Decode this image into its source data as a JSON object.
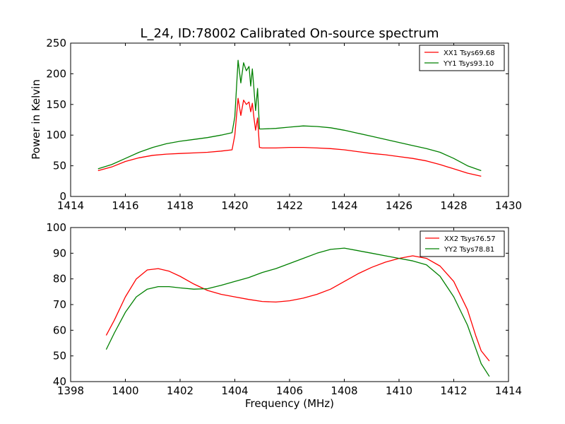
{
  "chart_data": [
    {
      "type": "line",
      "title": "L_24, ID:78002 Calibrated On-source spectrum",
      "xlabel": "",
      "ylabel": "Power in Kelvin",
      "xlim": [
        1414,
        1430
      ],
      "ylim": [
        0,
        250
      ],
      "xticks": [
        1414,
        1416,
        1418,
        1420,
        1422,
        1424,
        1426,
        1428,
        1430
      ],
      "yticks": [
        0,
        50,
        100,
        150,
        200,
        250
      ],
      "grid": false,
      "legend": "top-right",
      "series": [
        {
          "name": "XX1 Tsys69.68",
          "color": "#ff0000",
          "points": [
            [
              1415,
              42
            ],
            [
              1415.5,
              48
            ],
            [
              1416,
              57
            ],
            [
              1416.5,
              63
            ],
            [
              1417,
              67
            ],
            [
              1417.5,
              69
            ],
            [
              1418,
              70
            ],
            [
              1418.5,
              71
            ],
            [
              1419,
              72
            ],
            [
              1419.5,
              74
            ],
            [
              1419.9,
              76
            ],
            [
              1420.0,
              100
            ],
            [
              1420.12,
              160
            ],
            [
              1420.22,
              132
            ],
            [
              1420.32,
              157
            ],
            [
              1420.42,
              150
            ],
            [
              1420.52,
              154
            ],
            [
              1420.58,
              138
            ],
            [
              1420.64,
              152
            ],
            [
              1420.7,
              128
            ],
            [
              1420.76,
              108
            ],
            [
              1420.83,
              128
            ],
            [
              1420.9,
              80
            ],
            [
              1421,
              79
            ],
            [
              1421.5,
              79
            ],
            [
              1422,
              80
            ],
            [
              1422.5,
              80
            ],
            [
              1423,
              79
            ],
            [
              1423.5,
              78
            ],
            [
              1424,
              76
            ],
            [
              1424.5,
              73
            ],
            [
              1425,
              70
            ],
            [
              1425.5,
              68
            ],
            [
              1426,
              65
            ],
            [
              1426.5,
              62
            ],
            [
              1427,
              58
            ],
            [
              1427.5,
              52
            ],
            [
              1428,
              45
            ],
            [
              1428.5,
              38
            ],
            [
              1429,
              33
            ]
          ]
        },
        {
          "name": "YY1 Tsys93.10",
          "color": "#008000",
          "points": [
            [
              1415,
              45
            ],
            [
              1415.5,
              52
            ],
            [
              1416,
              62
            ],
            [
              1416.5,
              72
            ],
            [
              1417,
              80
            ],
            [
              1417.5,
              86
            ],
            [
              1418,
              90
            ],
            [
              1418.5,
              93
            ],
            [
              1419,
              96
            ],
            [
              1419.5,
              100
            ],
            [
              1419.9,
              104
            ],
            [
              1420.0,
              130
            ],
            [
              1420.12,
              222
            ],
            [
              1420.22,
              185
            ],
            [
              1420.32,
              218
            ],
            [
              1420.42,
              205
            ],
            [
              1420.52,
              212
            ],
            [
              1420.58,
              180
            ],
            [
              1420.64,
              208
            ],
            [
              1420.7,
              175
            ],
            [
              1420.76,
              140
            ],
            [
              1420.83,
              176
            ],
            [
              1420.9,
              110
            ],
            [
              1421,
              110
            ],
            [
              1421.5,
              111
            ],
            [
              1422,
              113
            ],
            [
              1422.5,
              115
            ],
            [
              1423,
              114
            ],
            [
              1423.5,
              112
            ],
            [
              1424,
              108
            ],
            [
              1424.5,
              103
            ],
            [
              1425,
              98
            ],
            [
              1425.5,
              93
            ],
            [
              1426,
              88
            ],
            [
              1426.5,
              83
            ],
            [
              1427,
              78
            ],
            [
              1427.5,
              72
            ],
            [
              1428,
              62
            ],
            [
              1428.5,
              50
            ],
            [
              1429,
              42
            ]
          ]
        }
      ]
    },
    {
      "type": "line",
      "title": "",
      "xlabel": "Frequency (MHz)",
      "ylabel": "",
      "xlim": [
        1398,
        1414
      ],
      "ylim": [
        40,
        100
      ],
      "xticks": [
        1398,
        1400,
        1402,
        1404,
        1406,
        1408,
        1410,
        1412,
        1414
      ],
      "yticks": [
        40,
        50,
        60,
        70,
        80,
        90,
        100
      ],
      "grid": false,
      "legend": "top-right",
      "series": [
        {
          "name": "XX2 Tsys76.57",
          "color": "#ff0000",
          "points": [
            [
              1399.3,
              58
            ],
            [
              1399.6,
              64
            ],
            [
              1400,
              73
            ],
            [
              1400.4,
              80
            ],
            [
              1400.8,
              83.5
            ],
            [
              1401.2,
              84
            ],
            [
              1401.6,
              83
            ],
            [
              1402,
              81
            ],
            [
              1402.5,
              78
            ],
            [
              1403,
              75.5
            ],
            [
              1403.5,
              74
            ],
            [
              1404,
              73
            ],
            [
              1404.5,
              72
            ],
            [
              1405,
              71.2
            ],
            [
              1405.5,
              71
            ],
            [
              1406,
              71.5
            ],
            [
              1406.5,
              72.5
            ],
            [
              1407,
              74
            ],
            [
              1407.5,
              76
            ],
            [
              1408,
              79
            ],
            [
              1408.5,
              82
            ],
            [
              1409,
              84.5
            ],
            [
              1409.5,
              86.5
            ],
            [
              1410,
              88
            ],
            [
              1410.5,
              89
            ],
            [
              1411,
              88
            ],
            [
              1411.5,
              85
            ],
            [
              1412,
              79
            ],
            [
              1412.5,
              68
            ],
            [
              1412.8,
              58
            ],
            [
              1413,
              52
            ],
            [
              1413.3,
              48
            ]
          ]
        },
        {
          "name": "YY2 Tsys78.81",
          "color": "#008000",
          "points": [
            [
              1399.3,
              52.5
            ],
            [
              1399.6,
              59
            ],
            [
              1400,
              67
            ],
            [
              1400.4,
              73
            ],
            [
              1400.8,
              76
            ],
            [
              1401.2,
              77
            ],
            [
              1401.6,
              77
            ],
            [
              1402,
              76.5
            ],
            [
              1402.5,
              76
            ],
            [
              1403,
              76.2
            ],
            [
              1403.5,
              77.5
            ],
            [
              1404,
              79
            ],
            [
              1404.5,
              80.5
            ],
            [
              1405,
              82.5
            ],
            [
              1405.5,
              84
            ],
            [
              1406,
              86
            ],
            [
              1406.5,
              88
            ],
            [
              1407,
              90
            ],
            [
              1407.5,
              91.5
            ],
            [
              1408,
              92
            ],
            [
              1408.5,
              91
            ],
            [
              1409,
              90
            ],
            [
              1409.5,
              89
            ],
            [
              1410,
              88
            ],
            [
              1410.5,
              87
            ],
            [
              1411,
              85.5
            ],
            [
              1411.5,
              81
            ],
            [
              1412,
              73
            ],
            [
              1412.5,
              62
            ],
            [
              1412.8,
              53
            ],
            [
              1413,
              47
            ],
            [
              1413.3,
              42
            ]
          ]
        }
      ]
    }
  ]
}
